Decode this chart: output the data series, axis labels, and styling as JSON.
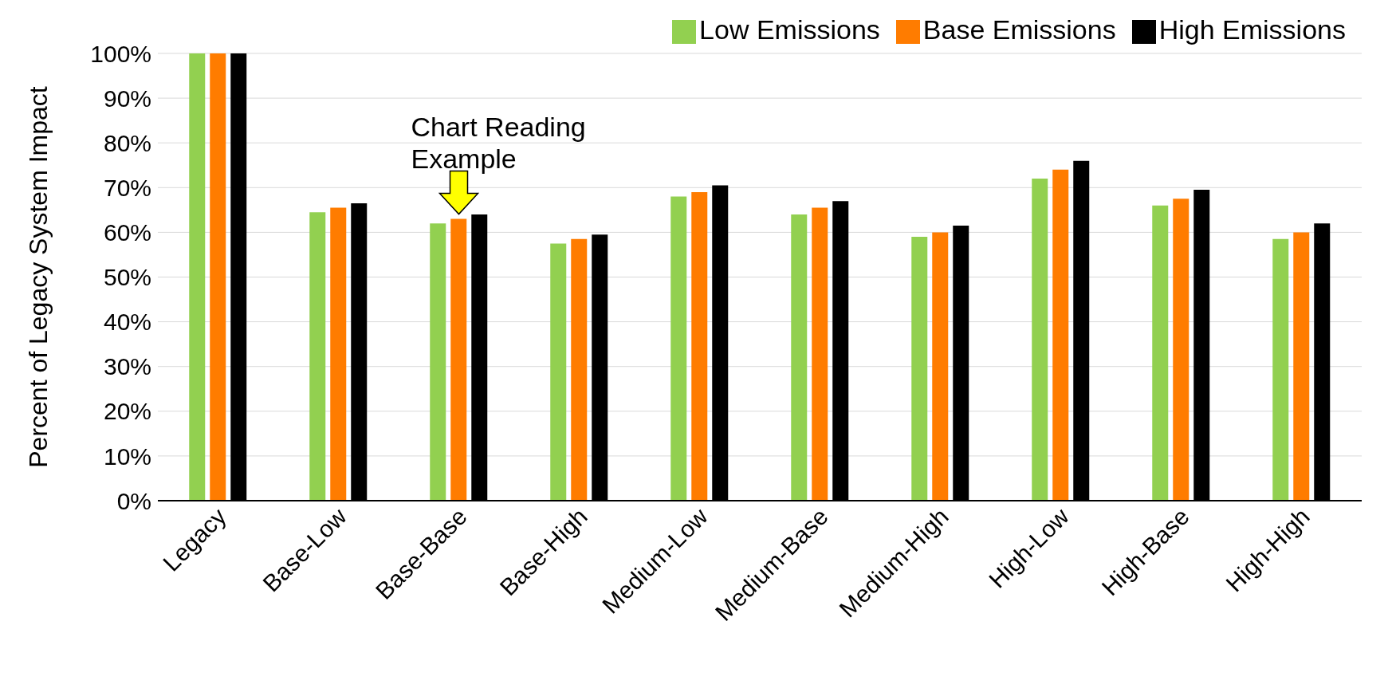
{
  "chart_data": {
    "type": "bar",
    "ylabel": "Percent of Legacy System Impact",
    "categories": [
      "Legacy",
      "Base-Low",
      "Base-Base",
      "Base-High",
      "Medium-Low",
      "Medium-Base",
      "Medium-High",
      "High-Low",
      "High-Base",
      "High-High"
    ],
    "series": [
      {
        "name": "Low Emissions",
        "color": "#92d050",
        "values": [
          100,
          64.5,
          62,
          57.5,
          68,
          64,
          59,
          72,
          66,
          58.5
        ]
      },
      {
        "name": "Base Emissions",
        "color": "#ff7c00",
        "values": [
          100,
          65.5,
          63,
          58.5,
          69,
          65.5,
          60,
          74,
          67.5,
          60
        ]
      },
      {
        "name": "High Emissions",
        "color": "#000000",
        "values": [
          100,
          66.5,
          64,
          59.5,
          70.5,
          67,
          61.5,
          76,
          69.5,
          62
        ]
      }
    ],
    "ylim": [
      0,
      100
    ],
    "yticks": [
      {
        "value": 0,
        "label": "0%"
      },
      {
        "value": 10,
        "label": "10%"
      },
      {
        "value": 20,
        "label": "20%"
      },
      {
        "value": 30,
        "label": "30%"
      },
      {
        "value": 40,
        "label": "40%"
      },
      {
        "value": 50,
        "label": "50%"
      },
      {
        "value": 60,
        "label": "60%"
      },
      {
        "value": 70,
        "label": "70%"
      },
      {
        "value": 80,
        "label": "80%"
      },
      {
        "value": 90,
        "label": "90%"
      },
      {
        "value": 100,
        "label": "100%"
      }
    ],
    "grid": "y",
    "legend": "top right",
    "annotations": [
      {
        "text": "Chart Reading Example",
        "x": "Base-Base",
        "y": 63
      }
    ]
  }
}
